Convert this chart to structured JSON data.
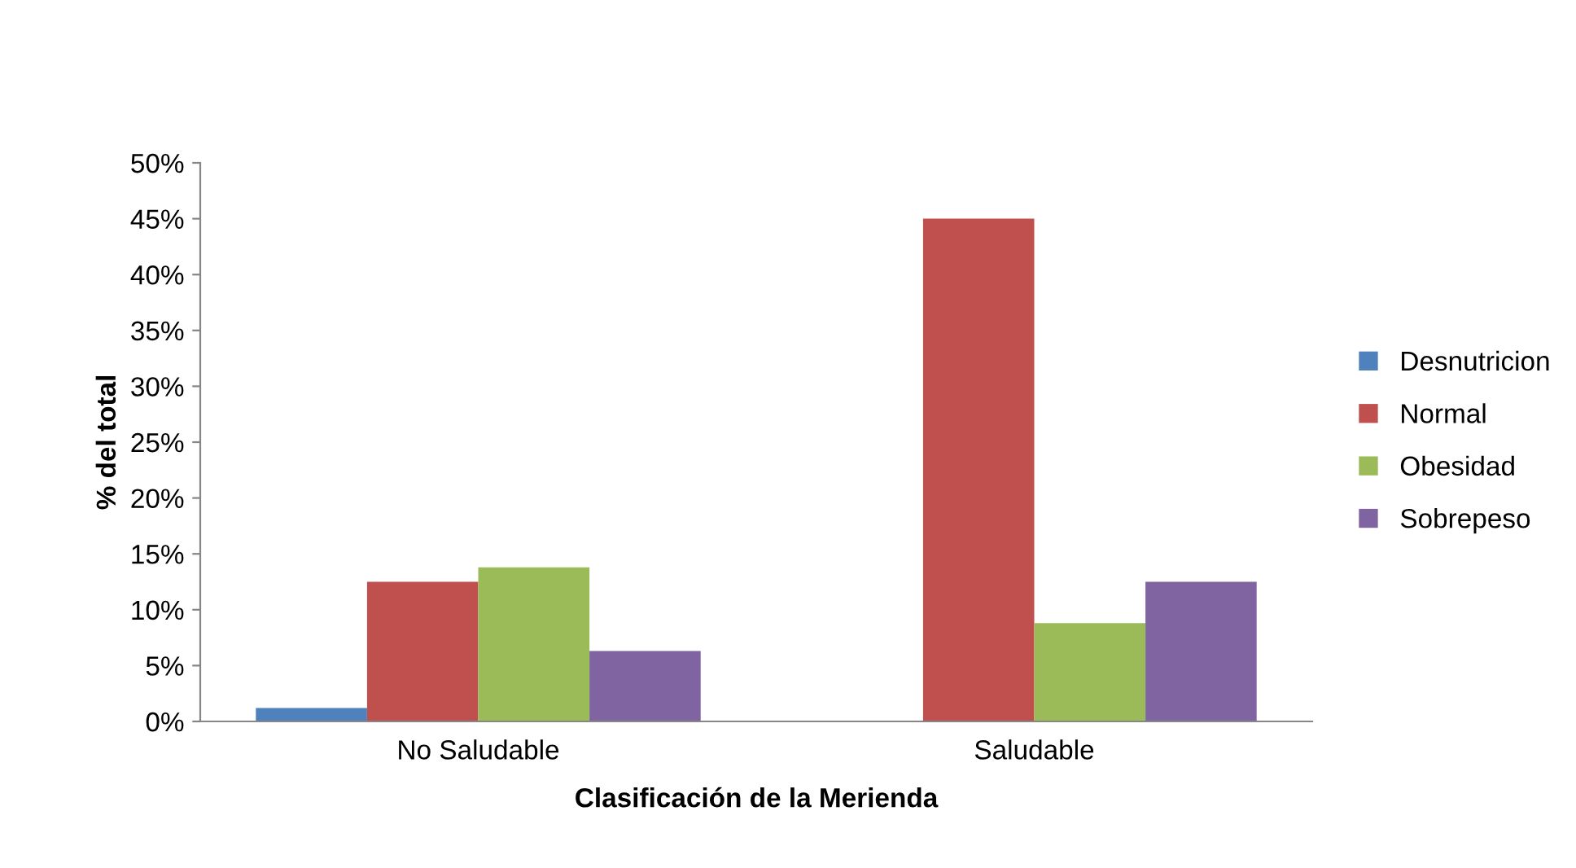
{
  "chart_data": {
    "type": "bar",
    "xlabel": "Clasificación de la Merienda",
    "ylabel": "% del total",
    "categories": [
      "No Saludable",
      "Saludable"
    ],
    "series": [
      {
        "name": "Desnutricion",
        "color": "#4f81bd",
        "values": [
          1.2,
          0
        ]
      },
      {
        "name": "Normal",
        "color": "#c0504d",
        "values": [
          12.5,
          45
        ]
      },
      {
        "name": "Obesidad",
        "color": "#9bbb59",
        "values": [
          13.8,
          8.8
        ]
      },
      {
        "name": "Sobrepeso",
        "color": "#8064a2",
        "values": [
          6.3,
          12.5
        ]
      }
    ],
    "ylim": [
      0,
      50
    ],
    "yticks": [
      {
        "value": 0,
        "label": "0%"
      },
      {
        "value": 5,
        "label": "5%"
      },
      {
        "value": 10,
        "label": "10%"
      },
      {
        "value": 15,
        "label": "15%"
      },
      {
        "value": 20,
        "label": "20%"
      },
      {
        "value": 25,
        "label": "25%"
      },
      {
        "value": 30,
        "label": "30%"
      },
      {
        "value": 35,
        "label": "35%"
      },
      {
        "value": 40,
        "label": "40%"
      },
      {
        "value": 45,
        "label": "45%"
      },
      {
        "value": 50,
        "label": "50%"
      }
    ],
    "grid": false,
    "legend": "right"
  }
}
